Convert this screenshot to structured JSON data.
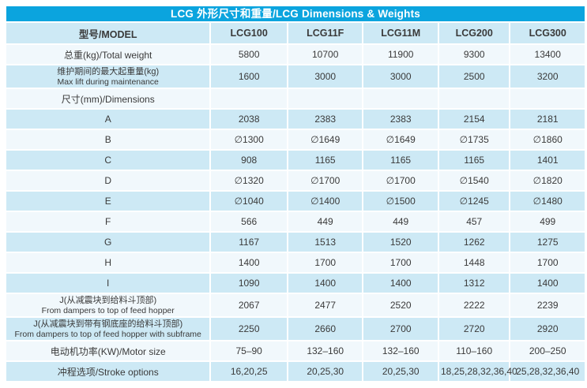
{
  "title": {
    "text": "LCG 外形尺寸和重量/LCG Dimensions & Weights"
  },
  "colors": {
    "accent": "#0ba4de",
    "row_blue": "#cde9f5",
    "row_pale": "#f1f8fc",
    "text": "#3a3a3a",
    "title_text": "#ffffff",
    "grid": "#ffffff"
  },
  "table": {
    "columns": [
      "型号/MODEL",
      "LCG100",
      "LCG11F",
      "LCG11M",
      "LCG200",
      "LCG300"
    ],
    "rows": [
      {
        "label": "总重(kg)/Total weight",
        "values": [
          "5800",
          "10700",
          "11900",
          "9300",
          "13400"
        ]
      },
      {
        "label": "维护期间的最大起重量(kg)",
        "label_en": "Max lift during maintenance",
        "values": [
          "1600",
          "3000",
          "3000",
          "2500",
          "3200"
        ]
      },
      {
        "label": "尺寸(mm)/Dimensions",
        "values": [
          "",
          "",
          "",
          "",
          ""
        ]
      },
      {
        "label": "A",
        "values": [
          "2038",
          "2383",
          "2383",
          "2154",
          "2181"
        ]
      },
      {
        "label": "B",
        "values": [
          "∅1300",
          "∅1649",
          "∅1649",
          "∅1735",
          "∅1860"
        ]
      },
      {
        "label": "C",
        "values": [
          "908",
          "1165",
          "1165",
          "1165",
          "1401"
        ]
      },
      {
        "label": "D",
        "values": [
          "∅1320",
          "∅1700",
          "∅1700",
          "∅1540",
          "∅1820"
        ]
      },
      {
        "label": "E",
        "values": [
          "∅1040",
          "∅1400",
          "∅1500",
          "∅1245",
          "∅1480"
        ]
      },
      {
        "label": "F",
        "values": [
          "566",
          "449",
          "449",
          "457",
          "499"
        ]
      },
      {
        "label": "G",
        "values": [
          "1167",
          "1513",
          "1520",
          "1262",
          "1275"
        ]
      },
      {
        "label": "H",
        "values": [
          "1400",
          "1700",
          "1700",
          "1448",
          "1700"
        ]
      },
      {
        "label": "I",
        "values": [
          "1090",
          "1400",
          "1400",
          "1312",
          "1400"
        ]
      },
      {
        "label": "J(从减震块到给料斗顶部)",
        "label_en": "From dampers to top of feed hopper",
        "values": [
          "2067",
          "2477",
          "2520",
          "2222",
          "2239"
        ]
      },
      {
        "label": "J(从减震块到带有钢底座的给料斗顶部)",
        "label_en": "From dampers to top of feed hopper with subframe",
        "values": [
          "2250",
          "2660",
          "2700",
          "2720",
          "2920"
        ]
      },
      {
        "label": "电动机功率(KW)/Motor size",
        "values": [
          "75–90",
          "132–160",
          "132–160",
          "110–160",
          "200–250"
        ]
      },
      {
        "label": "冲程选项/Stroke options",
        "values": [
          "16,20,25",
          "20,25,30",
          "20,25,30",
          "18,25,28,32,36,40",
          "25,28,32,36,40"
        ]
      }
    ]
  }
}
